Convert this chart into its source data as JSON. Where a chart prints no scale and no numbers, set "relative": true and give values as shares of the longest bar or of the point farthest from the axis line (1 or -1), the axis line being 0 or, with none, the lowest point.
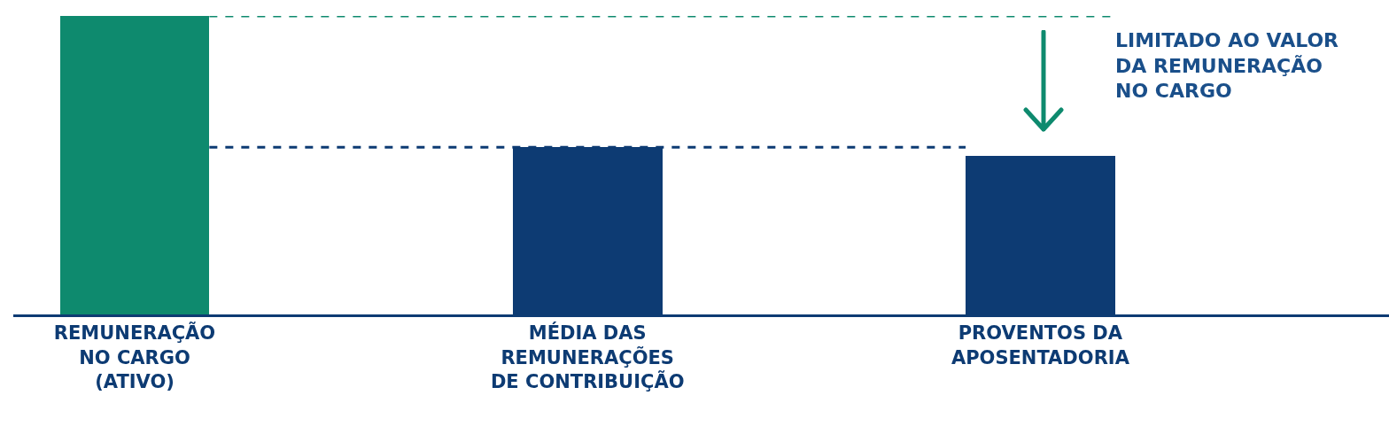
{
  "chart_data": {
    "type": "bar",
    "relative": true,
    "categories": [
      "REMUNERAÇÃO\nNO CARGO\n(ATIVO)",
      "MÉDIA DAS\nREMUNERAÇÕES\nDE CONTRIBUIÇÃO",
      "PROVENTOS DA\nAPOSENTADORIA"
    ],
    "values": [
      1,
      0.56,
      0.53
    ],
    "colors": [
      "#0e8a6e",
      "#0d3b73",
      "#0d3b73"
    ],
    "ref_lines": [
      {
        "axis": "y",
        "value": 1,
        "color": "#0e8a6e",
        "line_style": "dashed"
      },
      {
        "axis": "y",
        "value": 0.56,
        "color": "#0d3b73",
        "line_style": "dashed"
      }
    ],
    "annotations": [
      "LIMITADO AO VALOR\nDA REMUNERAÇÃO\nNO CARGO"
    ],
    "grid": false,
    "legend": false
  }
}
